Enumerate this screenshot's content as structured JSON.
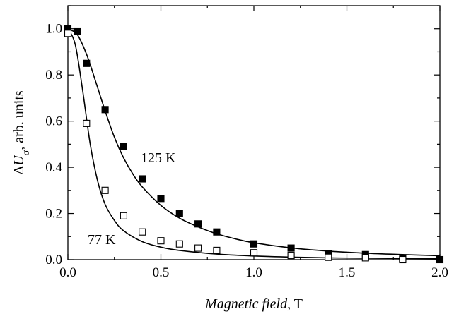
{
  "chart_data": {
    "type": "scatter",
    "xlabel": {
      "italic": "Magnetic field",
      "rest": ", T"
    },
    "ylabel": {
      "pre": "Δ",
      "var": "U",
      "sub": "σ",
      "post": ", arb. units"
    },
    "xlim": [
      0,
      2.0
    ],
    "ylim": [
      0,
      1.1
    ],
    "xticks": [
      "0.0",
      "0.5",
      "1.0",
      "1.5",
      "2.0"
    ],
    "yticks": [
      "0.0",
      "0.2",
      "0.4",
      "0.6",
      "0.8",
      "1.0"
    ],
    "grid": false,
    "annotations": [
      "125 K",
      "77 K"
    ],
    "series": [
      {
        "name": "125 K",
        "marker": "filled-square",
        "color": "#000000",
        "points": [
          [
            0.0,
            1.0
          ],
          [
            0.05,
            0.99
          ],
          [
            0.1,
            0.85
          ],
          [
            0.2,
            0.65
          ],
          [
            0.3,
            0.49
          ],
          [
            0.4,
            0.35
          ],
          [
            0.5,
            0.265
          ],
          [
            0.6,
            0.2
          ],
          [
            0.7,
            0.155
          ],
          [
            0.8,
            0.12
          ],
          [
            1.0,
            0.068
          ],
          [
            1.2,
            0.05
          ],
          [
            1.4,
            0.025
          ],
          [
            1.6,
            0.022
          ],
          [
            1.8,
            0.005
          ],
          [
            2.0,
            0.0
          ]
        ],
        "fit": [
          [
            0.0,
            1.0
          ],
          [
            0.05,
            0.975
          ],
          [
            0.1,
            0.89
          ],
          [
            0.15,
            0.77
          ],
          [
            0.2,
            0.645
          ],
          [
            0.25,
            0.53
          ],
          [
            0.3,
            0.44
          ],
          [
            0.35,
            0.37
          ],
          [
            0.4,
            0.315
          ],
          [
            0.5,
            0.235
          ],
          [
            0.6,
            0.18
          ],
          [
            0.7,
            0.142
          ],
          [
            0.8,
            0.112
          ],
          [
            0.9,
            0.09
          ],
          [
            1.0,
            0.073
          ],
          [
            1.2,
            0.051
          ],
          [
            1.4,
            0.037
          ],
          [
            1.6,
            0.028
          ],
          [
            1.8,
            0.022
          ],
          [
            2.0,
            0.017
          ]
        ]
      },
      {
        "name": "77 K",
        "marker": "open-square",
        "color": "#000000",
        "points": [
          [
            0.0,
            0.98
          ],
          [
            0.1,
            0.59
          ],
          [
            0.2,
            0.3
          ],
          [
            0.3,
            0.19
          ],
          [
            0.4,
            0.12
          ],
          [
            0.5,
            0.082
          ],
          [
            0.6,
            0.068
          ],
          [
            0.7,
            0.05
          ],
          [
            0.8,
            0.04
          ],
          [
            1.0,
            0.03
          ],
          [
            1.2,
            0.018
          ],
          [
            1.4,
            0.01
          ],
          [
            1.6,
            0.008
          ],
          [
            1.8,
            0.0
          ]
        ],
        "fit": [
          [
            0.0,
            1.0
          ],
          [
            0.04,
            0.93
          ],
          [
            0.08,
            0.73
          ],
          [
            0.12,
            0.5
          ],
          [
            0.16,
            0.34
          ],
          [
            0.2,
            0.24
          ],
          [
            0.25,
            0.17
          ],
          [
            0.3,
            0.125
          ],
          [
            0.4,
            0.078
          ],
          [
            0.5,
            0.054
          ],
          [
            0.6,
            0.04
          ],
          [
            0.8,
            0.024
          ],
          [
            1.0,
            0.016
          ],
          [
            1.2,
            0.011
          ],
          [
            1.4,
            0.008
          ],
          [
            1.6,
            0.006
          ],
          [
            2.0,
            0.004
          ]
        ]
      }
    ]
  }
}
